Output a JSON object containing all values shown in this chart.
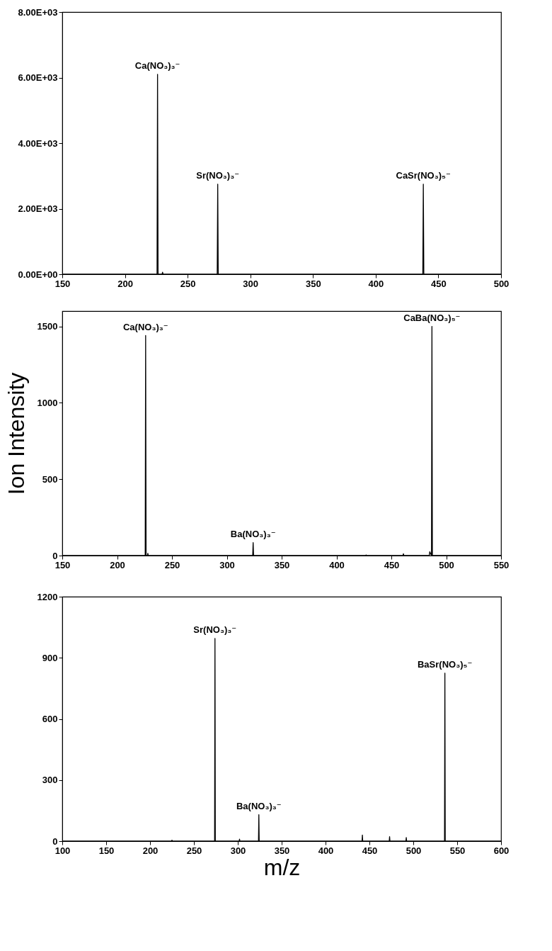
{
  "chart_data": [
    {
      "type": "line",
      "xlim": [
        150,
        500
      ],
      "xticks": [
        150,
        200,
        250,
        300,
        350,
        400,
        450,
        500
      ],
      "ylim": [
        0,
        8000
      ],
      "yticks": [
        {
          "value": 0,
          "label": "0.00E+00"
        },
        {
          "value": 2000,
          "label": "2.00E+03"
        },
        {
          "value": 4000,
          "label": "4.00E+03"
        },
        {
          "value": 6000,
          "label": "6.00E+03"
        },
        {
          "value": 8000,
          "label": "8.00E+03"
        }
      ],
      "grid": false,
      "marker": "none",
      "line_style": "solid",
      "series": [
        {
          "color": "#000000",
          "x": [
            150,
            225.6,
            226,
            226.4,
            229.6,
            230,
            230.4,
            273.6,
            274,
            274.4,
            437.6,
            438,
            438.4,
            500
          ],
          "values": [
            0,
            0,
            6100,
            0,
            0,
            60,
            0,
            0,
            2750,
            0,
            0,
            2750,
            0,
            0
          ]
        }
      ],
      "annotations": [
        {
          "text": "Ca(NO₃)₃⁻",
          "x": 226,
          "y": 6100
        },
        {
          "text": "Sr(NO₃)₃⁻",
          "x": 274,
          "y": 2750
        },
        {
          "text": "CaSr(NO₃)₅⁻",
          "x": 438,
          "y": 2750
        }
      ]
    },
    {
      "type": "line",
      "ylabel": "Ion Intensity",
      "xlim": [
        150,
        550
      ],
      "xticks": [
        150,
        200,
        250,
        300,
        350,
        400,
        450,
        500,
        550
      ],
      "ylim": [
        0,
        1600
      ],
      "yticks": [
        0,
        500,
        1000,
        1500
      ],
      "grid": false,
      "marker": "none",
      "line_style": "solid",
      "series": [
        {
          "color": "#000000",
          "x": [
            150,
            225.6,
            226,
            226.4,
            227.6,
            228,
            228.4,
            323.6,
            324,
            324.4,
            426.6,
            427,
            427.4,
            460.6,
            461,
            461.4,
            484.6,
            485,
            486.6,
            487,
            487.4,
            550
          ],
          "values": [
            0,
            0,
            1440,
            0,
            0,
            15,
            0,
            0,
            85,
            0,
            0,
            4,
            0,
            0,
            12,
            0,
            0,
            25,
            0,
            1500,
            0,
            0
          ]
        }
      ],
      "annotations": [
        {
          "text": "Ca(NO₃)₃⁻",
          "x": 226,
          "y": 1440
        },
        {
          "text": "Ba(NO₃)₃⁻",
          "x": 324,
          "y": 85
        },
        {
          "text": "CaBa(NO₃)₅⁻",
          "x": 487,
          "y": 1500
        }
      ]
    },
    {
      "type": "line",
      "xlabel": "m/z",
      "xlim": [
        100,
        600
      ],
      "xticks": [
        100,
        150,
        200,
        250,
        300,
        350,
        400,
        450,
        500,
        550,
        600
      ],
      "ylim": [
        0,
        1200
      ],
      "yticks": [
        0,
        300,
        600,
        900,
        1200
      ],
      "grid": false,
      "marker": "none",
      "line_style": "solid",
      "series": [
        {
          "color": "#000000",
          "x": [
            100,
            224.6,
            225,
            225.4,
            273.6,
            274,
            274.4,
            301.6,
            302,
            302.4,
            323.6,
            324,
            324.4,
            441.6,
            442,
            442.4,
            472.6,
            473,
            473.4,
            491.6,
            492,
            492.4,
            535.6,
            536,
            536.4,
            600
          ],
          "values": [
            0,
            0,
            5,
            0,
            0,
            995,
            0,
            0,
            10,
            0,
            0,
            130,
            0,
            0,
            30,
            0,
            0,
            22,
            0,
            0,
            18,
            0,
            0,
            825,
            0,
            0
          ]
        }
      ],
      "annotations": [
        {
          "text": "Sr(NO₃)₃⁻",
          "x": 274,
          "y": 995
        },
        {
          "text": "Ba(NO₃)₃⁻",
          "x": 324,
          "y": 130
        },
        {
          "text": "BaSr(NO₃)₅⁻",
          "x": 536,
          "y": 825
        }
      ]
    }
  ]
}
